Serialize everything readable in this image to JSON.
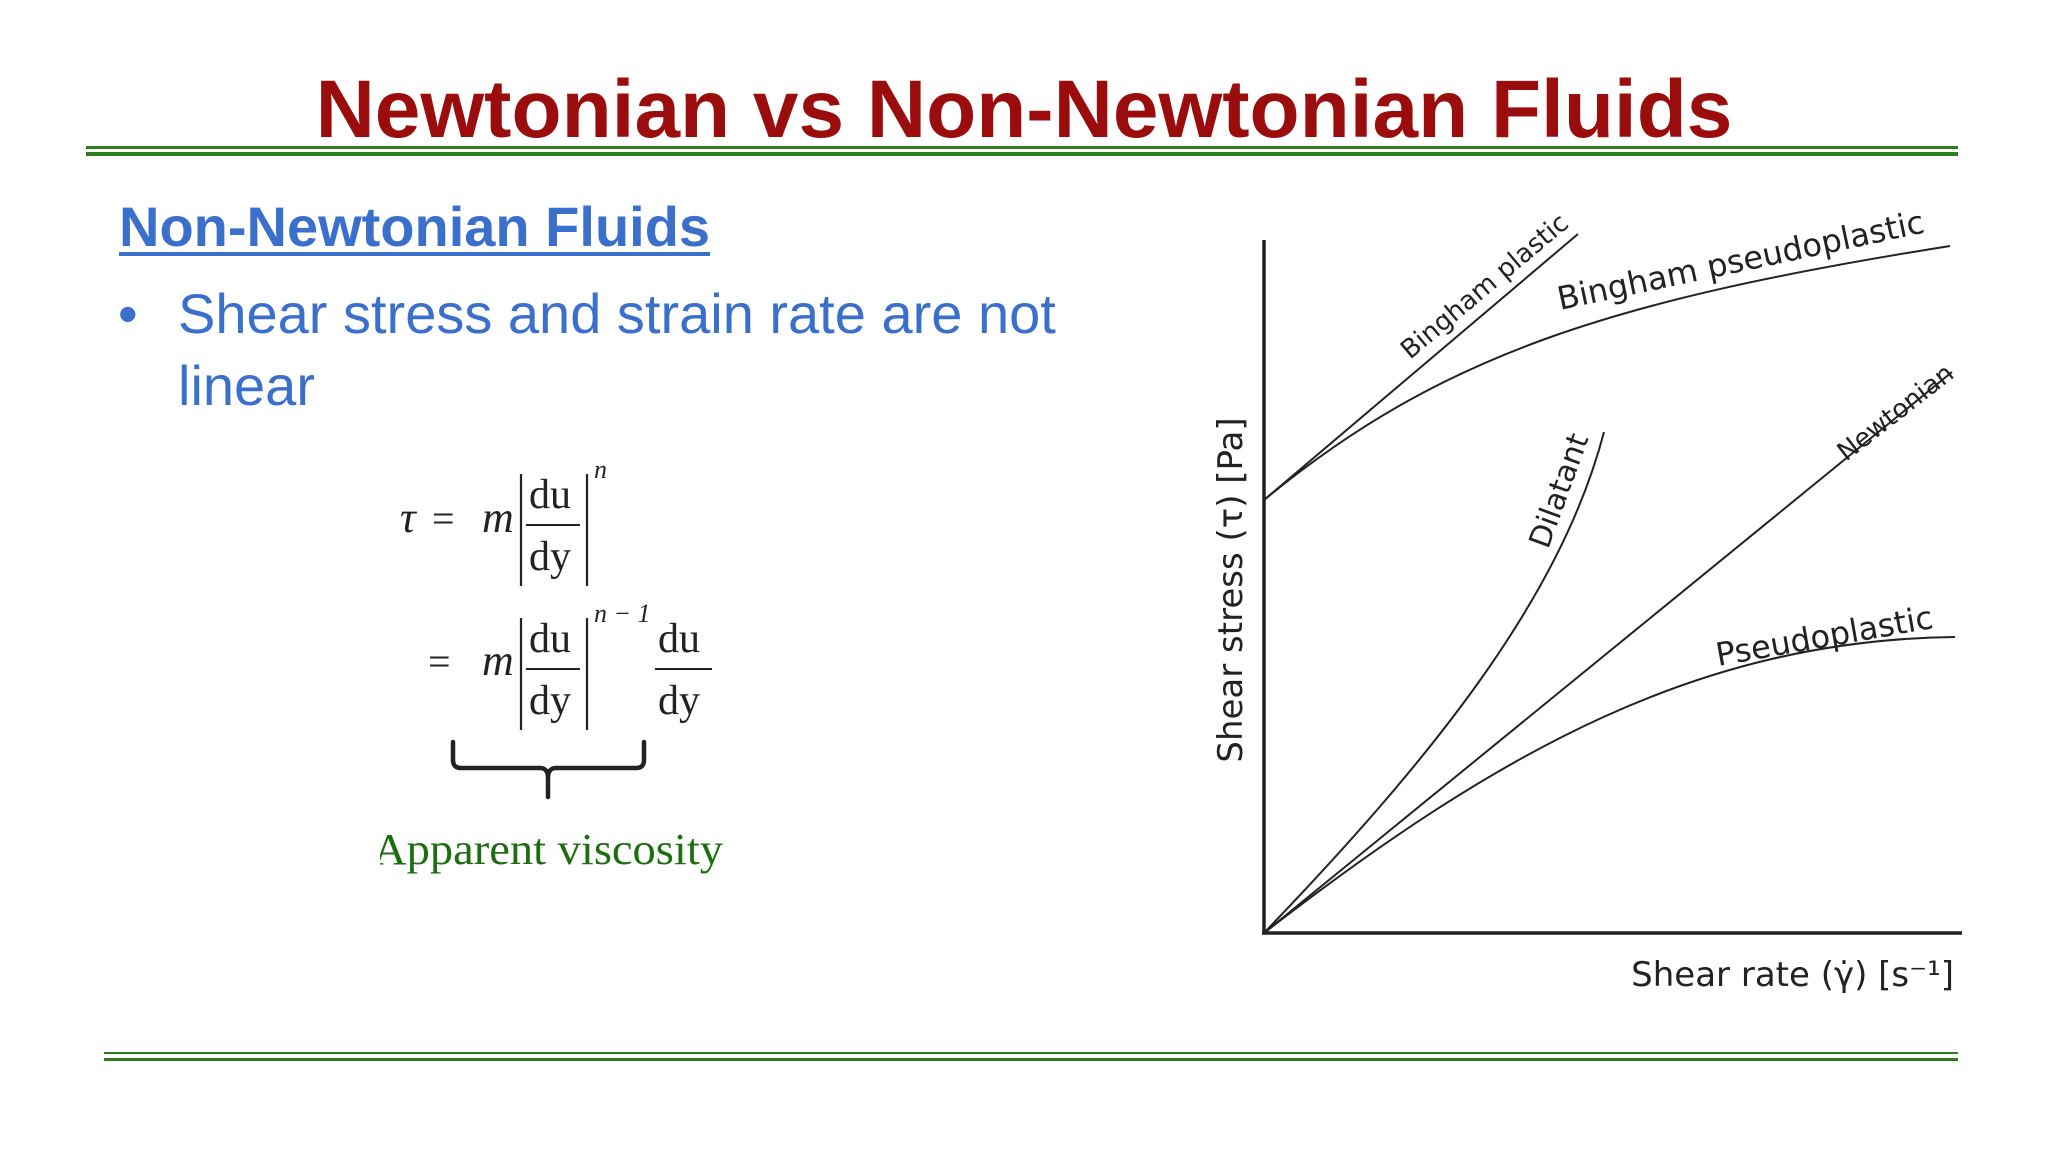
{
  "slide": {
    "title": "Newtonian vs Non-Newtonian Fluids",
    "subheading": "Non-Newtonian Fluids",
    "bullets": [
      "Shear stress and strain rate are not linear"
    ]
  },
  "formula": {
    "tau": "τ",
    "equals": "=",
    "m": "m",
    "du": "du",
    "dy": "dy",
    "exponent_n": "n",
    "exponent_n_minus_1": "n − 1",
    "brace_label": "Apparent viscosity"
  },
  "chart_data": {
    "type": "line",
    "ylabel": "Shear stress (τ) [Pa]",
    "xlabel": "Shear rate (γ̇) [s⁻¹]",
    "grid": false,
    "x_ticks": false,
    "y_ticks": false,
    "curves": [
      {
        "label": "Bingham plastic",
        "behavior": "linear with nonzero yield stress",
        "yield_stress": true
      },
      {
        "label": "Bingham pseudoplastic",
        "behavior": "concave with nonzero yield stress",
        "yield_stress": true
      },
      {
        "label": "Dilatant",
        "behavior": "convex through origin",
        "yield_stress": false
      },
      {
        "label": "Newtonian",
        "behavior": "linear through origin",
        "yield_stress": false
      },
      {
        "label": "Pseudoplastic",
        "behavior": "concave through origin",
        "yield_stress": false
      }
    ]
  },
  "colors": {
    "title": "#9b0d0d",
    "rule": "#2e7d1f",
    "accent_blue": "#3a6fcb",
    "apparent_green": "#1d6e10",
    "ink": "#222222"
  }
}
